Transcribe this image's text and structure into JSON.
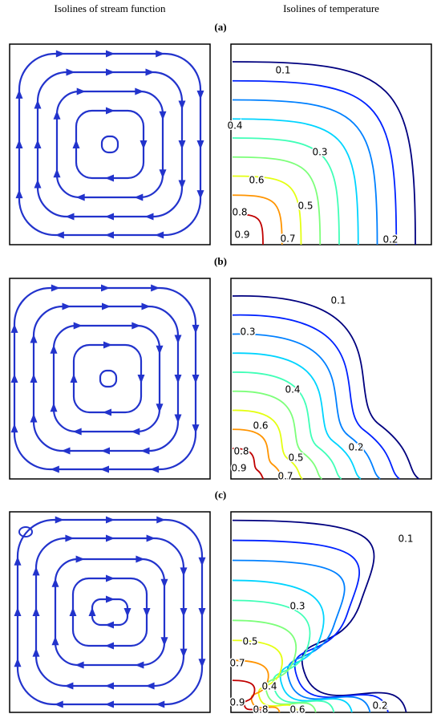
{
  "header": {
    "left_title": "Isolines of stream function",
    "right_title": "Isolines of temperature"
  },
  "panels": [
    {
      "label": "(a)",
      "temperature_labels": [
        "0.1",
        "0.4",
        "0.3",
        "0.6",
        "0.5",
        "0.8",
        "0.9",
        "0.7",
        "0.2"
      ]
    },
    {
      "label": "(b)",
      "temperature_labels": [
        "0.1",
        "0.3",
        "0.4",
        "0.6",
        "0.2",
        "0.8",
        "0.5",
        "0.9",
        "0.7"
      ]
    },
    {
      "label": "(c)",
      "temperature_labels": [
        "0.1",
        "0.3",
        "0.5",
        "0.7",
        "0.4",
        "0.9",
        "0.8",
        "0.6",
        "0.2"
      ]
    }
  ]
}
